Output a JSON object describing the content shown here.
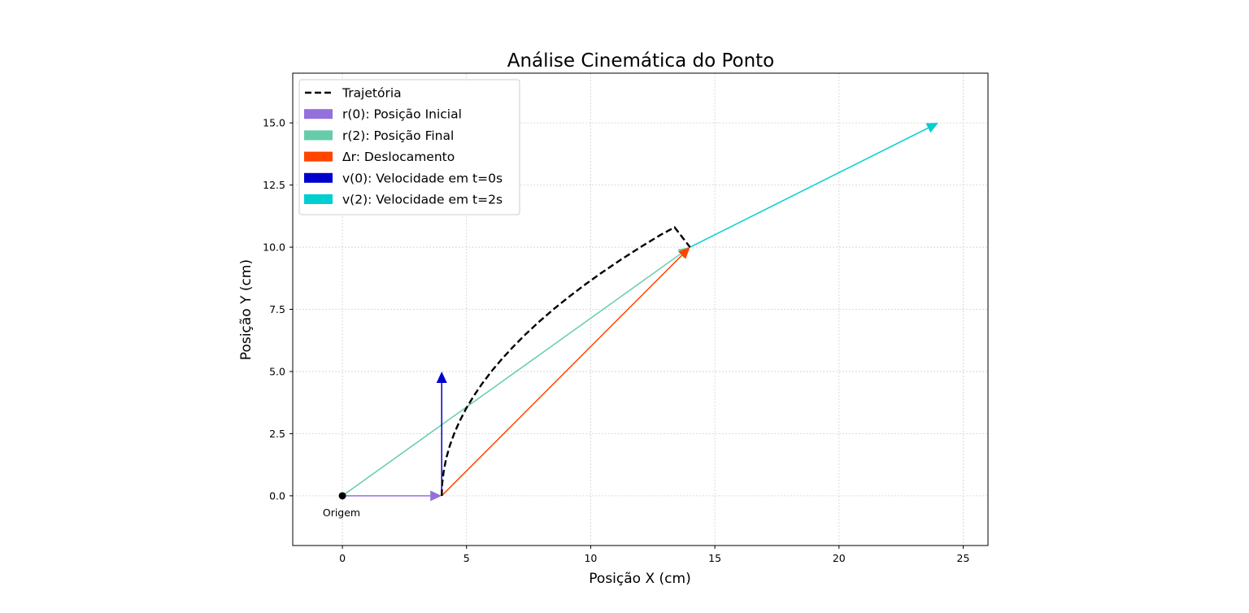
{
  "chart_data": {
    "type": "line",
    "title": "Análise Cinemática do Ponto",
    "xlabel": "Posição X (cm)",
    "ylabel": "Posição Y (cm)",
    "xlim": [
      -2,
      26
    ],
    "ylim": [
      -2,
      17
    ],
    "xticks": [
      0,
      5,
      10,
      15,
      20,
      25
    ],
    "xtick_labels": [
      "0",
      "5",
      "10",
      "15",
      "20",
      "25"
    ],
    "yticks": [
      0,
      2.5,
      5,
      7.5,
      10,
      12.5,
      15
    ],
    "ytick_labels": [
      "0.0",
      "2.5",
      "5.0",
      "7.5",
      "10.0",
      "12.5",
      "15.0"
    ],
    "grid": true,
    "legend_position": "upper-left",
    "trajectory": {
      "name": "Trajetória",
      "color": "#000000",
      "style": "dashed",
      "x": [
        4,
        4.02,
        4.08,
        4.18,
        4.32,
        4.5,
        4.72,
        4.98,
        5.28,
        5.62,
        6,
        6.42,
        6.88,
        7.38,
        7.92,
        8.5,
        9.12,
        9.78,
        10.48,
        11.22,
        12,
        12.82,
        13.38,
        14
      ],
      "y": [
        0,
        0.5,
        1,
        1.5,
        2,
        2.5,
        3,
        3.5,
        4,
        4.5,
        5,
        5.5,
        6,
        6.5,
        7,
        7.5,
        8,
        8.5,
        9,
        9.5,
        10,
        10.5,
        10.8,
        10
      ]
    },
    "vectors": [
      {
        "name": "r(0): Posição Inicial",
        "color": "#9370DB",
        "from": [
          0,
          0
        ],
        "to": [
          4,
          0
        ]
      },
      {
        "name": "r(2): Posição Final",
        "color": "#66CDAA",
        "from": [
          0,
          0
        ],
        "to": [
          14,
          10
        ]
      },
      {
        "name": "Δr: Deslocamento",
        "color": "#FF4500",
        "from": [
          4,
          0
        ],
        "to": [
          14,
          10
        ]
      },
      {
        "name": "v(0): Velocidade em t=0s",
        "color": "#0000CD",
        "from": [
          4,
          0
        ],
        "to": [
          4,
          5
        ]
      },
      {
        "name": "v(2): Velocidade em t=2s",
        "color": "#00CED1",
        "from": [
          14,
          10
        ],
        "to": [
          24,
          15
        ]
      }
    ],
    "origin": {
      "x": 0,
      "y": 0,
      "label": "Origem"
    }
  }
}
